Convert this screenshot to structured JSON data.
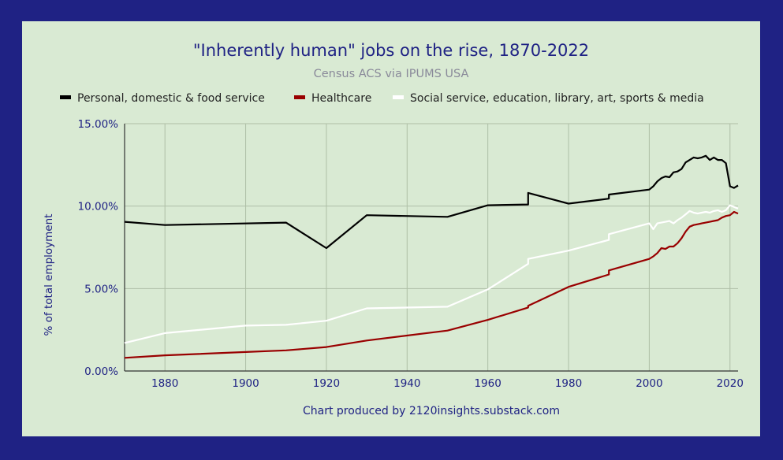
{
  "chart_data": {
    "type": "line",
    "title": "\"Inherently human\" jobs on the rise, 1870-2022",
    "subtitle": "Census ACS via IPUMS USA",
    "xlabel": "",
    "ylabel": "% of total employment",
    "credit": "Chart produced by 2120insights.substack.com",
    "xlim": [
      1870,
      2022
    ],
    "ylim": [
      0,
      15
    ],
    "x_ticks": [
      1880,
      1900,
      1920,
      1940,
      1960,
      1980,
      2000,
      2020
    ],
    "y_ticks": [
      0,
      5,
      10,
      15
    ],
    "y_tick_labels": [
      "0.00%",
      "5.00%",
      "10.00%",
      "15.00%"
    ],
    "grid": true,
    "legend_position": "top",
    "series": [
      {
        "name": "Personal, domestic & food service",
        "color": "#000000",
        "points": [
          [
            1870,
            9.05
          ],
          [
            1880,
            8.85
          ],
          [
            1910,
            9.0
          ],
          [
            1920,
            7.45
          ],
          [
            1930,
            9.45
          ],
          [
            1950,
            9.35
          ],
          [
            1960,
            10.05
          ],
          [
            1970,
            10.1
          ],
          [
            1970,
            10.8
          ],
          [
            1980,
            10.15
          ],
          [
            1990,
            10.45
          ],
          [
            1990,
            10.7
          ],
          [
            2000,
            11.0
          ],
          [
            2001,
            11.2
          ],
          [
            2002,
            11.5
          ],
          [
            2003,
            11.7
          ],
          [
            2004,
            11.8
          ],
          [
            2005,
            11.75
          ],
          [
            2006,
            12.05
          ],
          [
            2007,
            12.1
          ],
          [
            2008,
            12.25
          ],
          [
            2009,
            12.65
          ],
          [
            2010,
            12.8
          ],
          [
            2011,
            12.95
          ],
          [
            2012,
            12.9
          ],
          [
            2013,
            12.95
          ],
          [
            2014,
            13.05
          ],
          [
            2015,
            12.8
          ],
          [
            2016,
            12.95
          ],
          [
            2017,
            12.8
          ],
          [
            2018,
            12.8
          ],
          [
            2019,
            12.6
          ],
          [
            2020,
            11.2
          ],
          [
            2021,
            11.1
          ],
          [
            2022,
            11.25
          ]
        ]
      },
      {
        "name": "Healthcare",
        "color": "#990000",
        "points": [
          [
            1870,
            0.8
          ],
          [
            1880,
            0.95
          ],
          [
            1900,
            1.15
          ],
          [
            1910,
            1.25
          ],
          [
            1920,
            1.45
          ],
          [
            1930,
            1.85
          ],
          [
            1950,
            2.45
          ],
          [
            1960,
            3.1
          ],
          [
            1970,
            3.85
          ],
          [
            1970,
            3.95
          ],
          [
            1980,
            5.1
          ],
          [
            1990,
            5.85
          ],
          [
            1990,
            6.1
          ],
          [
            2000,
            6.8
          ],
          [
            2001,
            6.95
          ],
          [
            2002,
            7.15
          ],
          [
            2003,
            7.45
          ],
          [
            2004,
            7.4
          ],
          [
            2005,
            7.55
          ],
          [
            2006,
            7.55
          ],
          [
            2007,
            7.75
          ],
          [
            2008,
            8.05
          ],
          [
            2009,
            8.45
          ],
          [
            2010,
            8.75
          ],
          [
            2011,
            8.85
          ],
          [
            2012,
            8.9
          ],
          [
            2013,
            8.95
          ],
          [
            2014,
            9.0
          ],
          [
            2015,
            9.05
          ],
          [
            2016,
            9.1
          ],
          [
            2017,
            9.15
          ],
          [
            2018,
            9.3
          ],
          [
            2019,
            9.4
          ],
          [
            2020,
            9.45
          ],
          [
            2021,
            9.65
          ],
          [
            2022,
            9.55
          ]
        ]
      },
      {
        "name": "Social service, education, library, art, sports & media",
        "color": "#ffffff",
        "points": [
          [
            1870,
            1.7
          ],
          [
            1880,
            2.3
          ],
          [
            1900,
            2.75
          ],
          [
            1910,
            2.8
          ],
          [
            1920,
            3.05
          ],
          [
            1930,
            3.8
          ],
          [
            1950,
            3.9
          ],
          [
            1960,
            4.95
          ],
          [
            1970,
            6.5
          ],
          [
            1970,
            6.8
          ],
          [
            1980,
            7.3
          ],
          [
            1990,
            7.95
          ],
          [
            1990,
            8.3
          ],
          [
            2000,
            8.95
          ],
          [
            2001,
            8.6
          ],
          [
            2002,
            8.95
          ],
          [
            2003,
            9.0
          ],
          [
            2004,
            9.05
          ],
          [
            2005,
            9.1
          ],
          [
            2006,
            8.95
          ],
          [
            2007,
            9.15
          ],
          [
            2008,
            9.3
          ],
          [
            2009,
            9.5
          ],
          [
            2010,
            9.7
          ],
          [
            2011,
            9.6
          ],
          [
            2012,
            9.55
          ],
          [
            2013,
            9.6
          ],
          [
            2014,
            9.65
          ],
          [
            2015,
            9.6
          ],
          [
            2016,
            9.7
          ],
          [
            2017,
            9.75
          ],
          [
            2018,
            9.65
          ],
          [
            2019,
            9.75
          ],
          [
            2020,
            10.05
          ],
          [
            2021,
            9.95
          ],
          [
            2022,
            9.85
          ]
        ]
      }
    ]
  }
}
